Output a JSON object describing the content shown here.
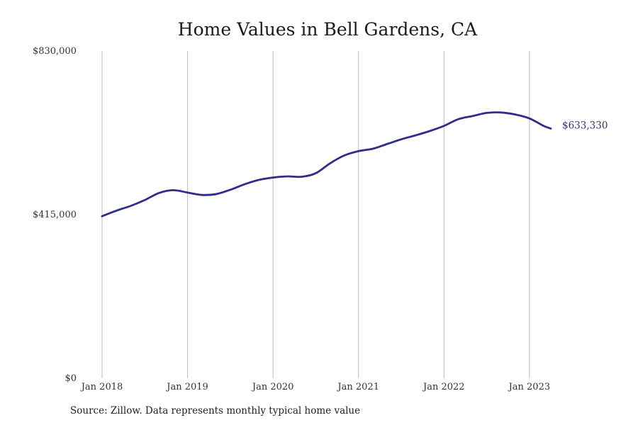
{
  "chart_data": {
    "type": "line",
    "title": "Home Values in Bell Gardens, CA",
    "xlabel": "",
    "ylabel": "",
    "ylim": [
      0,
      830000
    ],
    "yticks": [
      {
        "value": 0,
        "label": "$0"
      },
      {
        "value": 415000,
        "label": "$415,000"
      },
      {
        "value": 830000,
        "label": "$830,000"
      }
    ],
    "xlim": [
      "2018-01",
      "2023-04"
    ],
    "xticks": [
      {
        "x": "2018-01",
        "label": "Jan 2018"
      },
      {
        "x": "2019-01",
        "label": "Jan 2019"
      },
      {
        "x": "2020-01",
        "label": "Jan 2020"
      },
      {
        "x": "2021-01",
        "label": "Jan 2021"
      },
      {
        "x": "2022-01",
        "label": "Jan 2022"
      },
      {
        "x": "2023-01",
        "label": "Jan 2023"
      }
    ],
    "grid": "vertical",
    "legend": "none",
    "series": [
      {
        "color": "#2e2d8e",
        "end_label": "$633,330",
        "x": [
          "2018-01",
          "2018-03",
          "2018-05",
          "2018-07",
          "2018-09",
          "2018-11",
          "2019-01",
          "2019-03",
          "2019-05",
          "2019-07",
          "2019-09",
          "2019-11",
          "2020-01",
          "2020-03",
          "2020-05",
          "2020-07",
          "2020-09",
          "2020-11",
          "2021-01",
          "2021-03",
          "2021-05",
          "2021-07",
          "2021-09",
          "2021-11",
          "2022-01",
          "2022-03",
          "2022-05",
          "2022-07",
          "2022-09",
          "2022-11",
          "2023-01",
          "2023-03",
          "2023-04"
        ],
        "values": [
          411000,
          425000,
          437000,
          452000,
          470000,
          477000,
          471000,
          465000,
          467000,
          478000,
          492000,
          503000,
          509000,
          512000,
          511000,
          520000,
          545000,
          565000,
          576000,
          582000,
          594000,
          606000,
          616000,
          627000,
          640000,
          657000,
          665000,
          673000,
          674000,
          669000,
          659000,
          640000,
          633330
        ]
      }
    ]
  },
  "source_text": "Source: Zillow. Data represents monthly typical home value"
}
